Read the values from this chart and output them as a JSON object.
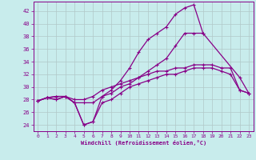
{
  "xlabel": "Windchill (Refroidissement éolien,°C)",
  "bg_color": "#c8ecec",
  "grid_color": "#b0c8c8",
  "line_color": "#880088",
  "xlim": [
    -0.5,
    23.5
  ],
  "ylim": [
    23.0,
    43.5
  ],
  "yticks": [
    24,
    26,
    28,
    30,
    32,
    34,
    36,
    38,
    40,
    42
  ],
  "xticks": [
    0,
    1,
    2,
    3,
    4,
    5,
    6,
    7,
    8,
    9,
    10,
    11,
    12,
    13,
    14,
    15,
    16,
    17,
    18,
    19,
    20,
    21,
    22,
    23
  ],
  "line1_x": [
    0,
    1,
    2,
    3,
    4,
    5,
    6,
    7,
    8,
    9,
    10,
    11,
    12,
    13,
    14,
    15,
    16,
    17,
    18,
    19,
    20,
    21,
    22,
    23
  ],
  "line1_y": [
    27.8,
    28.3,
    28.5,
    28.5,
    28.0,
    28.0,
    28.5,
    29.5,
    30.0,
    30.5,
    31.0,
    31.5,
    32.0,
    32.5,
    32.5,
    33.0,
    33.0,
    33.5,
    33.5,
    33.5,
    33.0,
    33.0,
    29.5,
    29.0
  ],
  "line2_x": [
    0,
    1,
    2,
    3,
    4,
    5,
    6,
    7,
    8,
    9,
    10,
    11,
    12,
    13,
    14,
    15,
    16,
    17,
    18,
    19,
    20,
    21,
    22,
    23
  ],
  "line2_y": [
    27.8,
    28.3,
    28.0,
    28.5,
    27.5,
    24.0,
    24.5,
    28.5,
    29.5,
    31.0,
    33.0,
    35.5,
    37.5,
    38.5,
    39.5,
    41.5,
    42.5,
    43.0,
    38.5,
    null,
    null,
    null,
    31.5,
    29.0
  ],
  "line3_x": [
    0,
    1,
    2,
    3,
    4,
    5,
    6,
    7,
    8,
    9,
    10,
    11,
    12,
    13,
    14,
    15,
    16,
    17,
    18,
    19
  ],
  "line3_y": [
    27.8,
    28.3,
    28.5,
    28.5,
    27.5,
    27.5,
    27.5,
    28.5,
    29.0,
    30.0,
    30.5,
    31.5,
    32.5,
    33.5,
    34.5,
    36.5,
    38.5,
    38.5,
    38.5,
    null
  ],
  "line4_x": [
    0,
    1,
    2,
    3,
    4,
    5,
    6,
    7,
    8,
    9,
    10,
    11,
    12,
    13,
    14,
    15,
    16,
    17,
    18,
    19,
    20,
    21,
    22,
    23
  ],
  "line4_y": [
    27.8,
    28.3,
    28.0,
    28.5,
    27.5,
    24.0,
    24.5,
    27.5,
    28.0,
    29.0,
    30.0,
    30.5,
    31.0,
    31.5,
    32.0,
    32.0,
    32.5,
    33.0,
    33.0,
    33.0,
    32.5,
    32.0,
    29.5,
    29.0
  ],
  "marker": "+",
  "markersize": 3,
  "linewidth": 0.9
}
